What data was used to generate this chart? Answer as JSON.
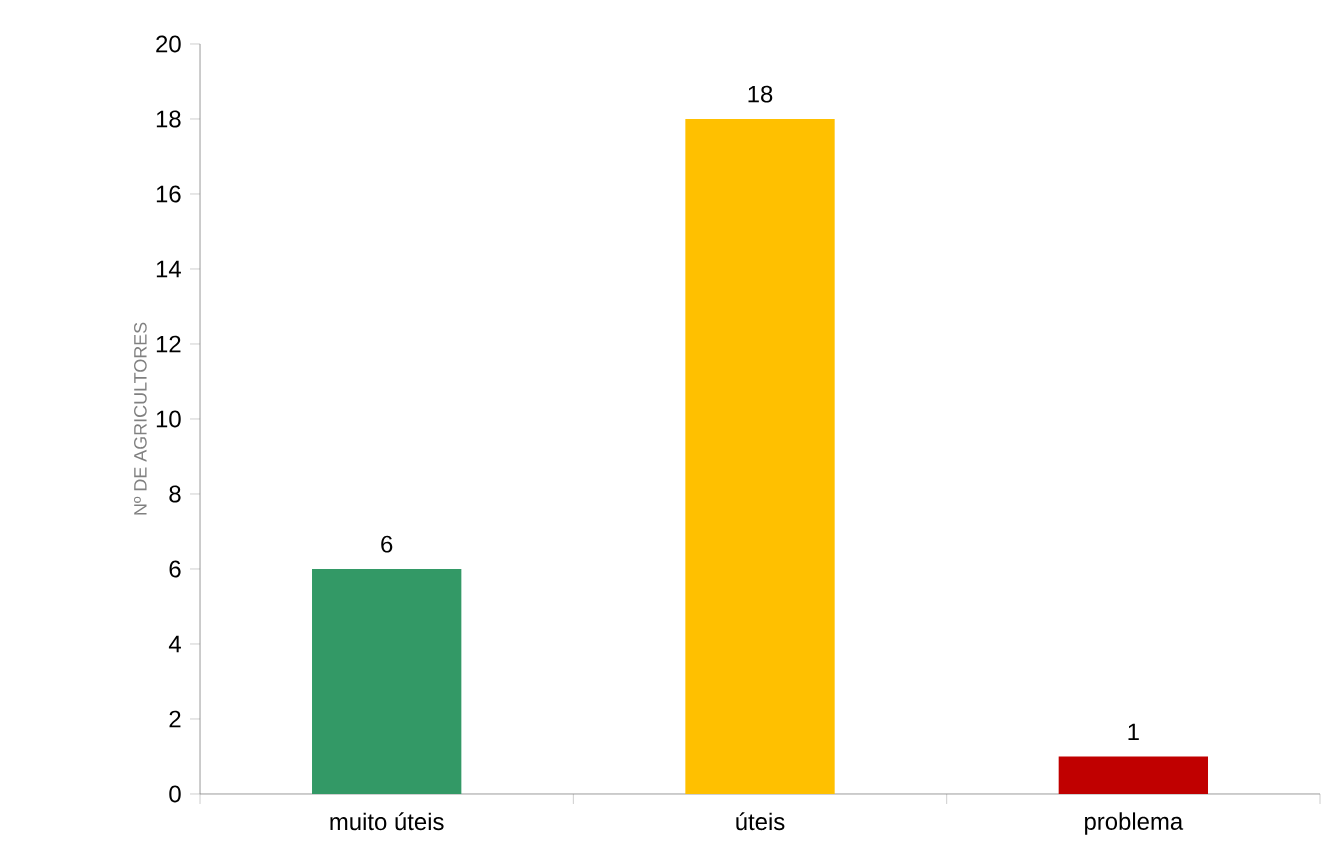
{
  "chart_data": {
    "type": "bar",
    "ylabel": "Nº DE AGRICULTORES",
    "categories": [
      "muito úteis",
      "úteis",
      "problema"
    ],
    "values": [
      6,
      18,
      1
    ],
    "colors": [
      "#339966",
      "#ffc000",
      "#c00000"
    ],
    "ylim": [
      0,
      20
    ],
    "yticks": [
      0,
      2,
      4,
      6,
      8,
      10,
      12,
      14,
      16,
      18,
      20
    ],
    "data_labels": true,
    "grid": false
  }
}
